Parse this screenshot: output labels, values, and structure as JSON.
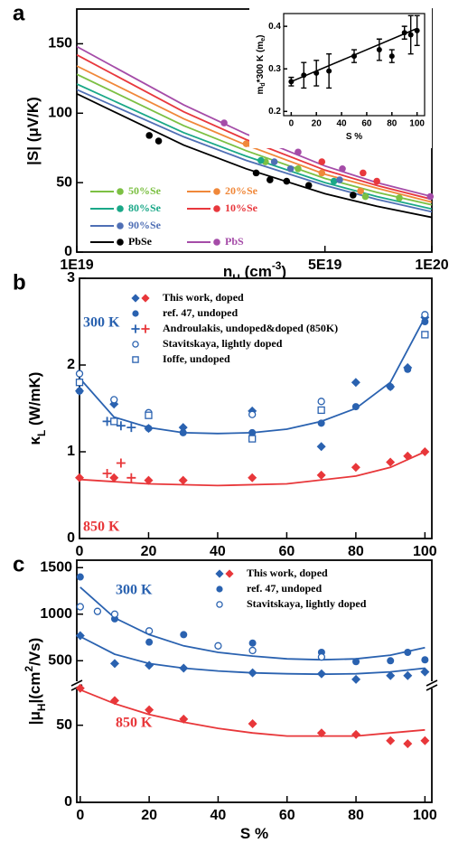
{
  "chart_data": [
    {
      "type": "line",
      "label": "a",
      "xlog": true,
      "xlim": [
        1e+19,
        1e+20
      ],
      "xticks": [
        {
          "value": 1e+19,
          "label": "1E19"
        },
        {
          "value": 5e+19,
          "label": "5E19"
        },
        {
          "value": 1e+20,
          "label": "1E20"
        }
      ],
      "ylim": [
        0,
        175
      ],
      "yticks": [
        0,
        50,
        100,
        150
      ],
      "ylabel": [
        {
          "text": "|S| (μV/K)"
        }
      ],
      "xlabel": [
        {
          "text": "n"
        },
        {
          "text": "H",
          "pos": "sub"
        },
        {
          "text": " (cm"
        },
        {
          "text": "-3",
          "pos": "sup"
        },
        {
          "text": ")"
        }
      ],
      "series": [
        {
          "name": "PbS",
          "color": "#a54ca8",
          "x": [
            1e+19,
            2e+19,
            3e+19,
            5e+19,
            7e+19,
            1e+20
          ],
          "values": [
            148,
            106,
            85,
            62,
            50,
            40
          ],
          "points": {
            "x": [
              2.6e+19,
              4.2e+19,
              5.6e+19,
              9.9e+19
            ],
            "values": [
              93,
              72,
              60,
              40
            ]
          }
        },
        {
          "name": "10%Se",
          "color": "#e8383d",
          "x": [
            1e+19,
            2e+19,
            3e+19,
            5e+19,
            7e+19,
            1e+20
          ],
          "values": [
            142,
            101,
            81,
            59,
            48,
            38
          ],
          "points": {
            "x": [
              3.5e+19,
              4.9e+19,
              6.4e+19,
              7e+19
            ],
            "values": [
              82,
              65,
              57,
              51
            ]
          }
        },
        {
          "name": "20%Se",
          "color": "#f0883a",
          "x": [
            1e+19,
            2e+19,
            3e+19,
            5e+19,
            7e+19,
            1e+20
          ],
          "values": [
            134,
            96,
            77,
            56,
            46,
            36
          ],
          "points": {
            "x": [
              3e+19,
              4.9e+19,
              6.3e+19
            ],
            "values": [
              78,
              57,
              44
            ]
          }
        },
        {
          "name": "50%Se",
          "color": "#7cc043",
          "x": [
            1e+19,
            2e+19,
            3e+19,
            5e+19,
            7e+19,
            1e+20
          ],
          "values": [
            128,
            91,
            73,
            53,
            43,
            34
          ],
          "points": {
            "x": [
              3.4e+19,
              4.2e+19,
              6.5e+19,
              8.1e+19
            ],
            "values": [
              65,
              60,
              40,
              39
            ]
          }
        },
        {
          "name": "80%Se",
          "color": "#1aa888",
          "x": [
            1e+19,
            2e+19,
            3e+19,
            5e+19,
            7e+19,
            1e+20
          ],
          "values": [
            121,
            86,
            69,
            50,
            40,
            31
          ],
          "points": {
            "x": [
              3.3e+19,
              5.3e+19
            ],
            "values": [
              66,
              51
            ]
          }
        },
        {
          "name": "90%Se",
          "color": "#4f6fb5",
          "x": [
            1e+19,
            2e+19,
            3e+19,
            5e+19,
            7e+19,
            1e+20
          ],
          "values": [
            117,
            83,
            66,
            48,
            38,
            29
          ],
          "points": {
            "x": [
              3.6e+19,
              4e+19,
              5.5e+19
            ],
            "values": [
              65,
              60,
              52
            ]
          }
        },
        {
          "name": "PbSe",
          "color": "#000000",
          "x": [
            1e+19,
            2e+19,
            3e+19,
            5e+19,
            7e+19,
            1e+20
          ],
          "values": [
            114,
            77,
            60,
            42,
            33,
            25
          ],
          "points": {
            "x": [
              1.6e+19,
              1.7e+19,
              3.2e+19,
              3.5e+19,
              3.9e+19,
              4.5e+19,
              6e+19
            ],
            "values": [
              84,
              80,
              57,
              52,
              51,
              48,
              41
            ]
          }
        }
      ]
    },
    {
      "type": "errorbar",
      "xlim": [
        -6,
        106
      ],
      "xticks": [
        0,
        20,
        40,
        60,
        80,
        100
      ],
      "ylim": [
        0.19,
        0.43
      ],
      "yticks": [
        0.2,
        0.3,
        0.4
      ],
      "xlabel": [
        {
          "text": "S %"
        }
      ],
      "ylabel": [
        {
          "text": "m"
        },
        {
          "text": "d",
          "pos": "sub"
        },
        {
          "text": "*300 K (m"
        },
        {
          "text": "e",
          "pos": "sub"
        },
        {
          "text": ")"
        }
      ],
      "x": [
        0,
        10,
        20,
        30,
        50,
        70,
        80,
        90,
        95,
        100
      ],
      "values": [
        0.27,
        0.285,
        0.29,
        0.295,
        0.33,
        0.345,
        0.33,
        0.385,
        0.38,
        0.39
      ],
      "errors": [
        0.01,
        0.03,
        0.03,
        0.04,
        0.015,
        0.025,
        0.015,
        0.015,
        0.045,
        0.035
      ],
      "color": "#000000",
      "fit": {
        "x": [
          0,
          100
        ],
        "values": [
          0.27,
          0.395
        ]
      }
    },
    {
      "type": "scatter",
      "label": "b",
      "xlim": [
        0,
        102
      ],
      "xticks": [
        0,
        20,
        40,
        60,
        80,
        100
      ],
      "ylim": [
        0,
        3
      ],
      "yticks": [
        0,
        1,
        2,
        3
      ],
      "ylabel": [
        {
          "text": "κ"
        },
        {
          "text": "L",
          "pos": "sub"
        },
        {
          "text": " (W/mK)"
        }
      ],
      "series": [
        {
          "name": "This work, doped",
          "marker": "diamond",
          "groups": [
            {
              "color": "#2a62b0",
              "x": [
                0,
                10,
                20,
                30,
                50,
                70,
                80,
                90,
                95,
                100
              ],
              "values": [
                1.7,
                1.55,
                1.27,
                1.28,
                1.47,
                1.06,
                1.8,
                1.75,
                1.97,
                2.55
              ]
            },
            {
              "color": "#e8373a",
              "x": [
                0,
                10,
                20,
                30,
                50,
                70,
                80,
                90,
                95,
                100
              ],
              "values": [
                0.7,
                0.7,
                0.67,
                0.67,
                0.7,
                0.73,
                0.82,
                0.88,
                0.95,
                1.0
              ]
            }
          ]
        },
        {
          "name": "ref. 47, undoped",
          "marker": "circle",
          "groups": [
            {
              "color": "#2a62b0",
              "x": [
                0,
                10,
                20,
                30,
                50,
                70,
                80,
                90,
                95,
                100
              ],
              "values": [
                1.7,
                1.35,
                1.27,
                1.22,
                1.22,
                1.33,
                1.52,
                1.75,
                1.95,
                2.5
              ]
            }
          ]
        },
        {
          "name": "Androulakis, undoped&doped (850K)",
          "marker": "plus",
          "groups": [
            {
              "color": "#2a62b0",
              "x": [
                8,
                12,
                15
              ],
              "values": [
                1.35,
                1.3,
                1.28
              ]
            },
            {
              "color": "#e8373a",
              "x": [
                8,
                12,
                15
              ],
              "values": [
                0.75,
                0.87,
                0.7
              ]
            }
          ]
        },
        {
          "name": "Stavitskaya, lightly doped",
          "marker": "circle-open",
          "groups": [
            {
              "color": "#2a62b0",
              "x": [
                0,
                10,
                20,
                50,
                70,
                100
              ],
              "values": [
                1.9,
                1.6,
                1.45,
                1.43,
                1.58,
                2.58
              ]
            }
          ]
        },
        {
          "name": "Ioffe, undoped",
          "marker": "square-open",
          "groups": [
            {
              "color": "#2a62b0",
              "x": [
                0,
                10,
                20,
                50,
                70,
                100
              ],
              "values": [
                1.8,
                1.35,
                1.42,
                1.15,
                1.48,
                2.35
              ]
            }
          ]
        }
      ],
      "fits": [
        {
          "color": "#2a62b0",
          "x": [
            0,
            10,
            20,
            30,
            40,
            50,
            60,
            70,
            80,
            90,
            100
          ],
          "values": [
            1.85,
            1.4,
            1.28,
            1.22,
            1.21,
            1.22,
            1.26,
            1.35,
            1.5,
            1.8,
            2.55
          ]
        },
        {
          "color": "#e8373a",
          "x": [
            0,
            20,
            40,
            60,
            80,
            90,
            100
          ],
          "values": [
            0.68,
            0.63,
            0.61,
            0.63,
            0.72,
            0.82,
            1.0
          ]
        }
      ],
      "annotations": [
        {
          "text": "300 K",
          "color": "#2a62b0"
        },
        {
          "text": "850 K",
          "color": "#e8373a"
        }
      ]
    },
    {
      "type": "scatter",
      "label": "c",
      "broken_axis": true,
      "xlim": [
        -1,
        102
      ],
      "xticks": [
        0,
        20,
        40,
        60,
        80,
        100
      ],
      "ylim": [
        0,
        75
      ],
      "yticks": [
        0,
        50
      ],
      "ylim_upper": [
        260,
        1580
      ],
      "yticks_upper": [
        500,
        1000,
        1500
      ],
      "xlabel": [
        {
          "text": "S %"
        }
      ],
      "ylabel": [
        {
          "text": "|μ"
        },
        {
          "text": "H",
          "pos": "sub"
        },
        {
          "text": "|(cm"
        },
        {
          "text": "2",
          "pos": "sup"
        },
        {
          "text": "/Vs)"
        }
      ],
      "series": [
        {
          "name": "This work, doped",
          "marker": "diamond",
          "groups": [
            {
              "color": "#2a62b0",
              "x": [
                0,
                10,
                20,
                30,
                50,
                70,
                80,
                90,
                95,
                100
              ],
              "values": [
                770,
                470,
                450,
                420,
                370,
                360,
                300,
                340,
                340,
                380
              ]
            },
            {
              "color": "#e8373a",
              "x": [
                0,
                10,
                20,
                30,
                50,
                70,
                80,
                90,
                95,
                100
              ],
              "values": [
                74,
                66,
                60,
                54,
                51,
                45,
                44,
                40,
                38,
                40
              ]
            }
          ]
        },
        {
          "name": "ref. 47, undoped",
          "marker": "circle",
          "groups": [
            {
              "color": "#2a62b0",
              "x": [
                0,
                10,
                20,
                30,
                50,
                70,
                80,
                90,
                95,
                100
              ],
              "values": [
                1400,
                950,
                700,
                780,
                690,
                590,
                490,
                500,
                590,
                510
              ]
            }
          ]
        },
        {
          "name": "Stavitskaya, lightly doped",
          "marker": "circle-open",
          "groups": [
            {
              "color": "#2a62b0",
              "x": [
                0,
                5,
                10,
                20,
                40,
                50,
                70
              ],
              "values": [
                1080,
                1030,
                1000,
                820,
                660,
                610,
                540
              ]
            }
          ]
        }
      ],
      "fits": [
        {
          "color": "#2a62b0",
          "x": [
            0,
            10,
            20,
            30,
            40,
            50,
            60,
            70,
            80,
            90,
            100
          ],
          "values": [
            1290,
            960,
            780,
            660,
            590,
            550,
            520,
            510,
            520,
            560,
            640
          ]
        },
        {
          "color": "#2a62b0",
          "x": [
            0,
            10,
            20,
            30,
            40,
            50,
            60,
            70,
            80,
            90,
            100
          ],
          "values": [
            760,
            570,
            470,
            420,
            390,
            370,
            360,
            355,
            360,
            380,
            420
          ]
        },
        {
          "color": "#e8373a",
          "x": [
            0,
            10,
            20,
            30,
            40,
            50,
            60,
            70,
            80,
            90,
            100
          ],
          "values": [
            73,
            64,
            57,
            52,
            48,
            45,
            43,
            43,
            43,
            45,
            47
          ]
        }
      ],
      "annotations": [
        {
          "text": "300 K",
          "color": "#2a62b0"
        },
        {
          "text": "850 K",
          "color": "#e8373a"
        }
      ]
    }
  ]
}
